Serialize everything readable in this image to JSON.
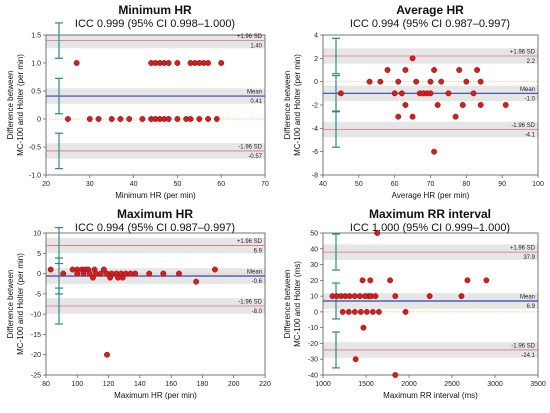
{
  "chart_data": [
    {
      "type": "scatter",
      "title": "Minimum HR",
      "subtitle": "ICC 0.999 (95% CI 0.998–1.000)",
      "xlabel": "Minimum HR (per min)",
      "ylabel": [
        "Difference between",
        "MC-100 and Holter (per min)"
      ],
      "xlim": [
        20,
        70
      ],
      "ylim": [
        -1.0,
        1.5
      ],
      "xticks": [
        "20",
        "30",
        "40",
        "50",
        "60",
        "70"
      ],
      "yticks": [
        "-1.0",
        "-0.5",
        "0",
        "0.5",
        "1.0",
        "1.5"
      ],
      "xtick_values": [
        20,
        30,
        40,
        50,
        60,
        70
      ],
      "ytick_values": [
        -1.0,
        -0.5,
        0,
        0.5,
        1.0,
        1.5
      ],
      "mean": 0.41,
      "upper_loa": 1.4,
      "lower_loa": -0.57,
      "mean_label": "Mean",
      "mean_value_label": "0.41",
      "upper_label": "+1.96 SD",
      "upper_value_label": "1.40",
      "lower_label": "-1.96 SD",
      "lower_value_label": "-0.57",
      "points": [
        [
          27,
          1
        ],
        [
          44,
          1
        ],
        [
          45,
          1
        ],
        [
          46,
          1
        ],
        [
          47,
          1
        ],
        [
          48,
          1
        ],
        [
          50,
          1
        ],
        [
          53,
          1
        ],
        [
          54,
          1
        ],
        [
          55,
          1
        ],
        [
          56,
          1
        ],
        [
          57,
          1
        ],
        [
          60,
          1
        ],
        [
          25,
          0
        ],
        [
          30,
          0
        ],
        [
          32,
          0
        ],
        [
          35,
          0
        ],
        [
          37,
          0
        ],
        [
          39,
          0
        ],
        [
          42,
          0
        ],
        [
          44,
          0
        ],
        [
          45,
          0
        ],
        [
          46,
          0
        ],
        [
          47,
          0
        ],
        [
          48,
          0
        ],
        [
          50,
          0
        ],
        [
          52,
          0
        ],
        [
          53,
          0
        ],
        [
          55,
          0
        ],
        [
          57,
          0
        ],
        [
          59,
          0
        ]
      ]
    },
    {
      "type": "scatter",
      "title": "Average HR",
      "subtitle": "ICC 0.994 (95% CI 0.987–0.997)",
      "xlabel": "Average HR (per min)",
      "ylabel": [
        "Difference between",
        "MC-100 and Holter (per min)"
      ],
      "xlim": [
        40,
        100
      ],
      "ylim": [
        -8,
        4
      ],
      "xticks": [
        "40",
        "50",
        "60",
        "70",
        "80",
        "90",
        "100"
      ],
      "yticks": [
        "-8",
        "-6",
        "-4",
        "-2",
        "0",
        "2",
        "4"
      ],
      "xtick_values": [
        40,
        50,
        60,
        70,
        80,
        90,
        100
      ],
      "ytick_values": [
        -8,
        -6,
        -4,
        -2,
        0,
        2,
        4
      ],
      "mean": -1.0,
      "upper_loa": 2.2,
      "lower_loa": -4.1,
      "mean_label": "Mean",
      "mean_value_label": "-1.0",
      "upper_label": "+1.96 SD",
      "upper_value_label": "2.2",
      "lower_label": "-1.96 SD",
      "lower_value_label": "-4.1",
      "points": [
        [
          65,
          2
        ],
        [
          58,
          1
        ],
        [
          63,
          1
        ],
        [
          71,
          1
        ],
        [
          78,
          1
        ],
        [
          83,
          1
        ],
        [
          53,
          0
        ],
        [
          56,
          0
        ],
        [
          61,
          0
        ],
        [
          66,
          0
        ],
        [
          70,
          0
        ],
        [
          73,
          0
        ],
        [
          80,
          0
        ],
        [
          84,
          0
        ],
        [
          45,
          -1
        ],
        [
          60,
          -1
        ],
        [
          62,
          -1
        ],
        [
          67,
          -1
        ],
        [
          68,
          -1
        ],
        [
          69,
          -1
        ],
        [
          70,
          -1
        ],
        [
          75,
          -1
        ],
        [
          82,
          -1
        ],
        [
          63,
          -2
        ],
        [
          72,
          -2
        ],
        [
          79,
          -2
        ],
        [
          84,
          -2
        ],
        [
          91,
          -2
        ],
        [
          61,
          -3
        ],
        [
          65,
          -3
        ],
        [
          77,
          -3
        ],
        [
          71,
          -6
        ]
      ]
    },
    {
      "type": "scatter",
      "title": "Maximum HR",
      "subtitle": "ICC 0.994 (95% CI 0.987–0.997)",
      "xlabel": "Maximum HR (per min)",
      "ylabel": [
        "Difference between",
        "MC-100 and Holter (per min)"
      ],
      "xlim": [
        80,
        220
      ],
      "ylim": [
        -25,
        10
      ],
      "xticks": [
        "80",
        "100",
        "120",
        "140",
        "160",
        "180",
        "200",
        "220"
      ],
      "yticks": [
        "-25",
        "-20",
        "-15",
        "-10",
        "-5",
        "0",
        "5",
        "10"
      ],
      "xtick_values": [
        80,
        100,
        120,
        140,
        160,
        180,
        200,
        220
      ],
      "ytick_values": [
        -25,
        -20,
        -15,
        -10,
        -5,
        0,
        5,
        10
      ],
      "mean": -0.6,
      "upper_loa": 6.9,
      "lower_loa": -8.0,
      "mean_label": "Mean",
      "mean_value_label": "-0.6",
      "upper_label": "+1.96 SD",
      "upper_value_label": "6.9",
      "lower_label": "-1.96 SD",
      "lower_value_label": "-8.0",
      "points": [
        [
          83,
          1
        ],
        [
          97,
          1
        ],
        [
          100,
          1
        ],
        [
          103,
          1
        ],
        [
          105,
          1
        ],
        [
          107,
          1
        ],
        [
          111,
          1
        ],
        [
          117,
          1
        ],
        [
          188,
          1
        ],
        [
          91,
          0
        ],
        [
          100,
          0
        ],
        [
          104,
          0
        ],
        [
          108,
          0
        ],
        [
          112,
          0
        ],
        [
          115,
          0
        ],
        [
          119,
          0
        ],
        [
          122,
          0
        ],
        [
          125,
          0
        ],
        [
          128,
          0
        ],
        [
          131,
          0
        ],
        [
          134,
          0
        ],
        [
          137,
          0
        ],
        [
          146,
          0
        ],
        [
          155,
          0
        ],
        [
          165,
          0
        ],
        [
          110,
          -1
        ],
        [
          121,
          -1
        ],
        [
          126,
          -1
        ],
        [
          129,
          -1
        ],
        [
          176,
          -2
        ],
        [
          119,
          -20
        ]
      ]
    },
    {
      "type": "scatter",
      "title": "Maximum RR interval",
      "subtitle": "ICC 1.000 (95% CI 0.999–1.000)",
      "xlabel": "Maximum RR interval (ms)",
      "ylabel": [
        "Difference between",
        "MC-100 and Holter (ms)"
      ],
      "xlim": [
        1000,
        3500
      ],
      "ylim": [
        -40,
        50
      ],
      "xticks": [
        "1000",
        "1500",
        "2000",
        "2500",
        "3000",
        "3500"
      ],
      "yticks": [
        "-40",
        "-30",
        "-20",
        "-10",
        "0",
        "10",
        "20",
        "30",
        "40",
        "50"
      ],
      "xtick_values": [
        1000,
        1500,
        2000,
        2500,
        3000,
        3500
      ],
      "ytick_values": [
        -40,
        -30,
        -20,
        -10,
        0,
        10,
        20,
        30,
        40,
        50
      ],
      "mean": 6.9,
      "upper_loa": 37.9,
      "lower_loa": -24.1,
      "mean_label": "Mean",
      "mean_value_label": "6.9",
      "upper_label": "+1.96 SD",
      "upper_value_label": "37.9",
      "lower_label": "-1.96 SD",
      "lower_value_label": "-24.1",
      "points": [
        [
          1630,
          50
        ],
        [
          1460,
          20
        ],
        [
          1550,
          20
        ],
        [
          1780,
          20
        ],
        [
          2680,
          20
        ],
        [
          2900,
          20
        ],
        [
          1530,
          10
        ],
        [
          1110,
          10
        ],
        [
          1160,
          10
        ],
        [
          1210,
          10
        ],
        [
          1260,
          10
        ],
        [
          1310,
          10
        ],
        [
          1370,
          10
        ],
        [
          1430,
          10
        ],
        [
          1490,
          10
        ],
        [
          1560,
          10
        ],
        [
          1610,
          10
        ],
        [
          1840,
          10
        ],
        [
          2240,
          10
        ],
        [
          2610,
          10
        ],
        [
          1230,
          0
        ],
        [
          1300,
          0
        ],
        [
          1370,
          0
        ],
        [
          1440,
          0
        ],
        [
          1510,
          0
        ],
        [
          1580,
          0
        ],
        [
          1650,
          0
        ],
        [
          1960,
          0
        ],
        [
          1470,
          -10
        ],
        [
          1380,
          -30
        ],
        [
          1840,
          -40
        ]
      ]
    }
  ]
}
